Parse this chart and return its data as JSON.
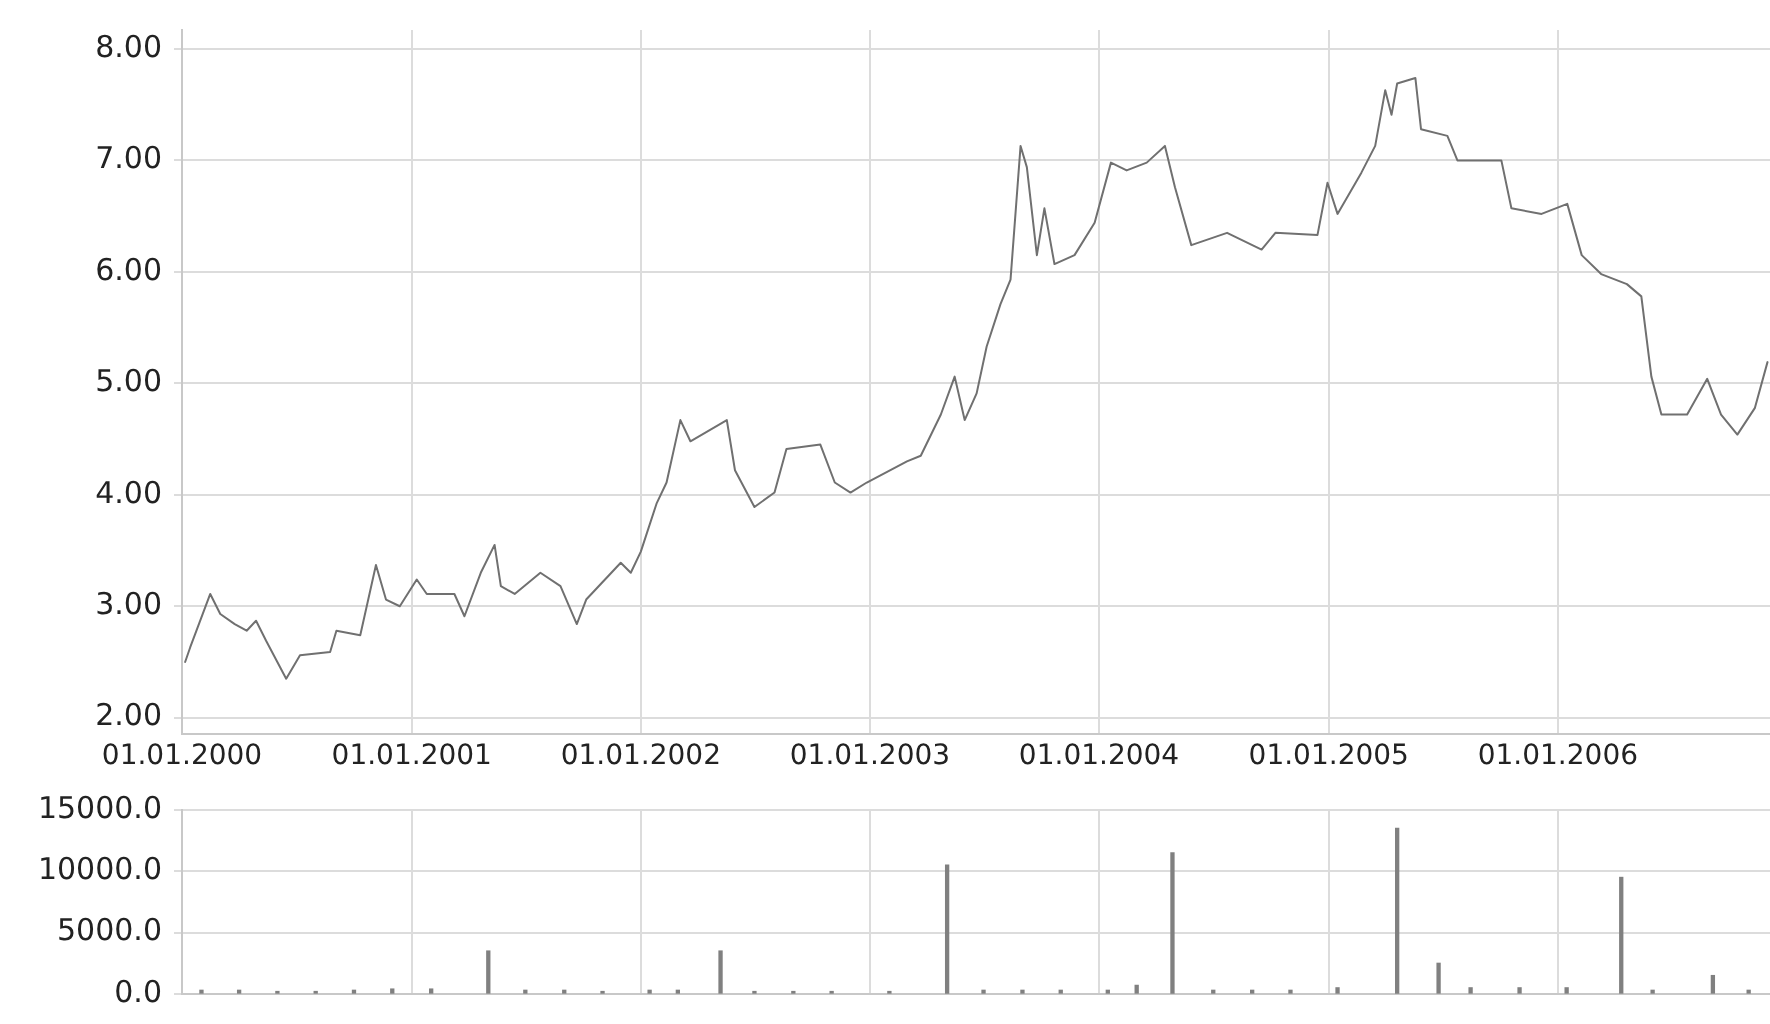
{
  "chart_data": [
    {
      "type": "line",
      "xlim": [
        "2000-01-01",
        "2006-12-05"
      ],
      "ylim": [
        1.85,
        8.17
      ],
      "marker": "none",
      "grid": true,
      "xticks": [
        {
          "value": "2000-01-01",
          "label": "01.01.2000"
        },
        {
          "value": "2001-01-01",
          "label": "01.01.2001"
        },
        {
          "value": "2002-01-01",
          "label": "01.01.2002"
        },
        {
          "value": "2003-01-01",
          "label": "01.01.2003"
        },
        {
          "value": "2004-01-01",
          "label": "01.01.2004"
        },
        {
          "value": "2005-01-01",
          "label": "01.01.2005"
        },
        {
          "value": "2006-01-01",
          "label": "01.01.2006"
        }
      ],
      "yticks": [
        {
          "value": 2,
          "label": "2.00"
        },
        {
          "value": 3,
          "label": "3.00"
        },
        {
          "value": 4,
          "label": "4.00"
        },
        {
          "value": 5,
          "label": "5.00"
        },
        {
          "value": 6,
          "label": "6.00"
        },
        {
          "value": 7,
          "label": "7.00"
        },
        {
          "value": 8,
          "label": "8.00"
        }
      ],
      "series": [
        {
          "color": "#707070",
          "x": [
            "2000-01-06",
            "2000-01-14",
            "2000-02-15",
            "2000-03-02",
            "2000-03-25",
            "2000-04-13",
            "2000-04-28",
            "2000-05-14",
            "2000-06-15",
            "2000-07-07",
            "2000-08-24",
            "2000-09-03",
            "2000-10-11",
            "2000-11-05",
            "2000-11-21",
            "2000-12-13",
            "2001-01-09",
            "2001-01-25",
            "2001-03-10",
            "2001-03-26",
            "2001-04-21",
            "2001-05-13",
            "2001-05-23",
            "2001-06-14",
            "2001-07-25",
            "2001-08-26",
            "2001-09-21",
            "2001-10-06",
            "2001-11-30",
            "2001-12-16",
            "2002-01-01",
            "2002-01-26",
            "2002-02-11",
            "2002-03-05",
            "2002-03-21",
            "2002-05-18",
            "2002-05-31",
            "2002-07-01",
            "2002-08-02",
            "2002-08-21",
            "2002-10-14",
            "2002-11-06",
            "2002-12-01",
            "2002-12-27",
            "2003-03-01",
            "2003-03-23",
            "2003-04-24",
            "2003-05-16",
            "2003-06-01",
            "2003-06-20",
            "2003-07-06",
            "2003-07-28",
            "2003-08-13",
            "2003-08-29",
            "2003-09-08",
            "2003-09-24",
            "2003-10-06",
            "2003-10-22",
            "2003-11-23",
            "2003-12-25",
            "2004-01-20",
            "2004-02-14",
            "2004-03-17",
            "2004-04-15",
            "2004-05-01",
            "2004-05-27",
            "2004-07-23",
            "2004-09-16",
            "2004-10-08",
            "2004-12-14",
            "2004-12-30",
            "2005-01-15",
            "2005-02-22",
            "2005-03-16",
            "2005-04-01",
            "2005-04-11",
            "2005-04-20",
            "2005-05-19",
            "2005-05-28",
            "2005-07-09",
            "2005-07-25",
            "2005-10-03",
            "2005-10-19",
            "2005-12-06",
            "2006-01-16",
            "2006-02-08",
            "2006-03-11",
            "2006-04-21",
            "2006-05-14",
            "2006-05-30",
            "2006-06-15",
            "2006-07-26",
            "2006-08-27",
            "2006-09-18",
            "2006-10-14",
            "2006-11-11",
            "2006-12-01"
          ],
          "values": [
            2.5,
            2.63,
            3.11,
            2.93,
            2.84,
            2.78,
            2.87,
            2.69,
            2.35,
            2.56,
            2.59,
            2.78,
            2.74,
            3.37,
            3.06,
            3.0,
            3.24,
            3.11,
            3.11,
            2.91,
            3.3,
            3.55,
            3.18,
            3.11,
            3.3,
            3.18,
            2.84,
            3.06,
            3.39,
            3.3,
            3.49,
            3.92,
            4.11,
            4.67,
            4.48,
            4.67,
            4.22,
            3.89,
            4.02,
            4.41,
            4.45,
            4.11,
            4.02,
            4.11,
            4.3,
            4.35,
            4.72,
            5.06,
            4.67,
            4.91,
            5.33,
            5.71,
            5.93,
            7.13,
            6.94,
            6.15,
            6.57,
            6.07,
            6.15,
            6.44,
            6.98,
            6.91,
            6.98,
            7.13,
            6.76,
            6.24,
            6.35,
            6.2,
            6.35,
            6.33,
            6.8,
            6.52,
            6.89,
            7.13,
            7.63,
            7.41,
            7.69,
            7.74,
            7.28,
            7.22,
            7.0,
            7.0,
            6.57,
            6.52,
            6.61,
            6.15,
            5.98,
            5.89,
            5.78,
            5.06,
            4.72,
            4.72,
            5.04,
            4.72,
            4.54,
            4.78,
            5.19
          ]
        }
      ]
    },
    {
      "type": "bar",
      "xlim": [
        "2000-01-01",
        "2006-12-05"
      ],
      "ylim": [
        0,
        15000
      ],
      "grid": true,
      "tick_labels": "y",
      "xticks": [
        {
          "value": "2000-01-01",
          "label": null
        },
        {
          "value": "2001-01-01",
          "label": null
        },
        {
          "value": "2002-01-01",
          "label": null
        },
        {
          "value": "2003-01-01",
          "label": null
        },
        {
          "value": "2004-01-01",
          "label": null
        },
        {
          "value": "2005-01-01",
          "label": null
        },
        {
          "value": "2006-01-01",
          "label": null
        }
      ],
      "yticks": [
        {
          "value": 0,
          "label": "0.0"
        },
        {
          "value": 5000,
          "label": "5000.0"
        },
        {
          "value": 10000,
          "label": "10000.0"
        },
        {
          "value": 15000,
          "label": "15000.0"
        }
      ],
      "series": [
        {
          "color": "#808080",
          "x": [
            "2000-02-01",
            "2000-04-01",
            "2000-06-01",
            "2000-08-01",
            "2000-10-01",
            "2000-12-01",
            "2001-02-01",
            "2001-05-03",
            "2001-07-01",
            "2001-09-01",
            "2001-11-01",
            "2002-01-15",
            "2002-03-01",
            "2002-05-08",
            "2002-07-01",
            "2002-09-01",
            "2002-11-01",
            "2003-02-01",
            "2003-05-04",
            "2003-07-01",
            "2003-09-01",
            "2003-11-01",
            "2004-01-15",
            "2004-03-01",
            "2004-04-27",
            "2004-07-01",
            "2004-09-01",
            "2004-11-01",
            "2005-01-15",
            "2005-04-20",
            "2005-06-25",
            "2005-08-15",
            "2005-11-01",
            "2006-01-15",
            "2006-04-12",
            "2006-06-01",
            "2006-09-05",
            "2006-11-01"
          ],
          "values": [
            300,
            300,
            200,
            200,
            300,
            400,
            400,
            3500,
            300,
            300,
            200,
            300,
            300,
            3500,
            200,
            200,
            200,
            200,
            10500,
            300,
            300,
            300,
            300,
            700,
            11500,
            300,
            300,
            300,
            500,
            13500,
            2500,
            500,
            500,
            500,
            9500,
            300,
            1500,
            300
          ]
        }
      ]
    }
  ]
}
